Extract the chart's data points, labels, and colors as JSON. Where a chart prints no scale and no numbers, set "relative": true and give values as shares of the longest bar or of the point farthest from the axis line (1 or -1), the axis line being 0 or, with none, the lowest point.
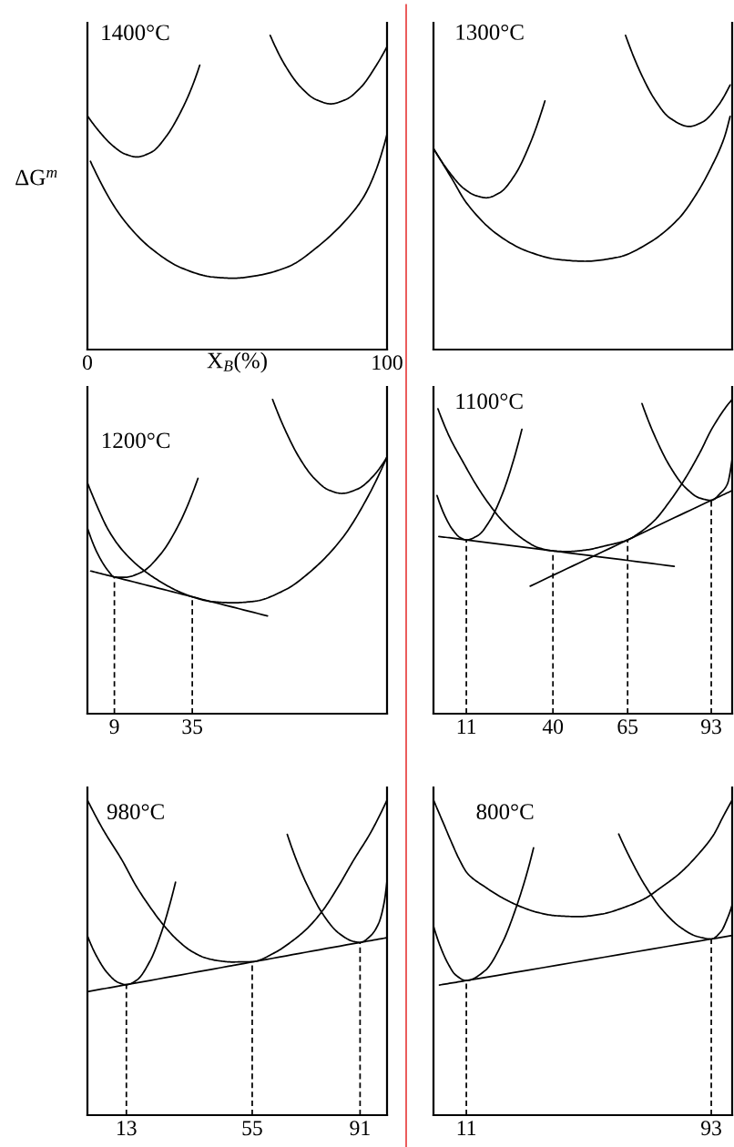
{
  "chart_data": [
    {
      "type": "line",
      "title": "1400°C",
      "xlabel": "X$_{B}$(%)",
      "ylabel": "ΔG$^{m}$",
      "relative": true,
      "xlim": [
        0,
        100
      ],
      "xticks": [
        0,
        100
      ],
      "tick_labels": "x",
      "series": [
        {
          "color": "#000000",
          "x": [
            0,
            4.3,
            8.3,
            12.4,
            16.4,
            21.5,
            26.5,
            31.6,
            34.7,
            37.5
          ],
          "values": [
            0.744,
            0.69,
            0.65,
            0.623,
            0.613,
            0.629,
            0.681,
            0.765,
            0.831,
            0.905
          ]
        },
        {
          "color": "#000000",
          "x": [
            61.0,
            66.0,
            71.1,
            76.2,
            81.2,
            86.3,
            91.4,
            96.4,
            100
          ],
          "values": [
            1.0,
            0.904,
            0.836,
            0.796,
            0.782,
            0.796,
            0.836,
            0.904,
            0.964
          ]
        },
        {
          "color": "#000000",
          "x": [
            1.0,
            11.3,
            21.5,
            31.6,
            41.7,
            48.8,
            56.9,
            67.1,
            77.2,
            87.3,
            92.4,
            96.4,
            100
          ],
          "values": [
            0.599,
            0.423,
            0.32,
            0.259,
            0.231,
            0.227,
            0.236,
            0.264,
            0.33,
            0.423,
            0.489,
            0.573,
            0.685
          ]
        }
      ]
    },
    {
      "type": "line",
      "title": "1300°C",
      "relative": true,
      "xlim": [
        0,
        100
      ],
      "tick_labels": false,
      "series": [
        {
          "color": "#000000",
          "x": [
            0,
            5.1,
            10.1,
            14.2,
            17.7,
            22.3,
            27.4,
            32.4,
            37.3
          ],
          "values": [
            0.64,
            0.567,
            0.513,
            0.49,
            0.483,
            0.5,
            0.558,
            0.657,
            0.791
          ]
        },
        {
          "color": "#000000",
          "x": [
            0,
            6.1,
            11.1,
            21.3,
            31.4,
            41.5,
            50.7,
            61.8,
            71.9,
            82.1,
            88.1,
            93.2,
            97.3,
            99.3
          ],
          "values": [
            0.64,
            0.545,
            0.466,
            0.367,
            0.313,
            0.287,
            0.281,
            0.294,
            0.338,
            0.417,
            0.496,
            0.584,
            0.673,
            0.742
          ]
        },
        {
          "color": "#000000",
          "x": [
            64.3,
            68.9,
            74.0,
            79.0,
            85.6,
            90.2,
            95.2,
            99.3
          ],
          "values": [
            1.0,
            0.89,
            0.797,
            0.738,
            0.71,
            0.725,
            0.775,
            0.842
          ]
        }
      ]
    },
    {
      "type": "line",
      "title": "1200°C",
      "relative": true,
      "xlim": [
        0,
        100
      ],
      "xticks": [
        9,
        35
      ],
      "tick_labels": "x",
      "series": [
        {
          "color": "#000000",
          "x": [
            0,
            3.2,
            6.9,
            9,
            12.4,
            18.0,
            24.2,
            30.4,
            36.9
          ],
          "values": [
            0.591,
            0.513,
            0.455,
            0.435,
            0.434,
            0.45,
            0.505,
            0.6,
            0.749
          ]
        },
        {
          "color": "#000000",
          "x": [
            0,
            3.2,
            6.9,
            11.7,
            18.0,
            24.2,
            30.4,
            35,
            41.2,
            48.6,
            55.9,
            65.8,
            75.6,
            85.4,
            93.3,
            100
          ],
          "values": [
            0.735,
            0.661,
            0.586,
            0.52,
            0.462,
            0.421,
            0.389,
            0.372,
            0.357,
            0.353,
            0.358,
            0.393,
            0.462,
            0.563,
            0.685,
            0.817
          ]
        },
        {
          "color": "#000000",
          "x": [
            61.8,
            65.8,
            70.7,
            75.6,
            80.5,
            84.9,
            90.4,
            95.3,
            100
          ],
          "values": [
            1.0,
            0.907,
            0.815,
            0.75,
            0.712,
            0.701,
            0.716,
            0.755,
            0.817
          ]
        },
        {
          "color": "#000000",
          "x": [
            1.1,
            9,
            35,
            60.1
          ],
          "values": [
            0.454,
            0.435,
            0.372,
            0.311
          ]
        },
        {
          "color": "#000000",
          "line_style": "dashed",
          "x": [
            9,
            9
          ],
          "values": [
            0,
            0.435
          ]
        },
        {
          "color": "#000000",
          "line_style": "dashed",
          "x": [
            35,
            35
          ],
          "values": [
            0,
            0.372
          ]
        }
      ]
    },
    {
      "type": "line",
      "title": "1100°C",
      "relative": true,
      "xlim": [
        0,
        100
      ],
      "xticks": [
        11,
        40,
        65,
        93
      ],
      "tick_labels": "x",
      "series": [
        {
          "color": "#000000",
          "x": [
            1.2,
            3.6,
            6.3,
            9.0,
            11,
            15.0,
            19.1,
            23.3,
            26.6,
            29.6
          ],
          "values": [
            0.694,
            0.634,
            0.587,
            0.56,
            0.553,
            0.568,
            0.618,
            0.705,
            0.8,
            0.905
          ]
        },
        {
          "color": "#000000",
          "x": [
            1.5,
            5.4,
            9.9,
            14.1,
            18.3,
            22.4,
            26.6,
            30.7,
            34.9,
            40,
            44.8,
            51.1,
            57.4,
            65,
            69.0,
            74.1,
            79.1,
            84.1,
            89.2,
            93.4,
            100
          ],
          "values": [
            0.97,
            0.88,
            0.801,
            0.731,
            0.671,
            0.621,
            0.581,
            0.551,
            0.529,
            0.518,
            0.516,
            0.521,
            0.534,
            0.553,
            0.576,
            0.616,
            0.676,
            0.746,
            0.831,
            0.91,
            1.0
          ]
        },
        {
          "color": "#000000",
          "x": [
            69.8,
            74.1,
            79.1,
            84.1,
            89.2,
            93,
            96.1,
            98.4,
            100
          ],
          "values": [
            0.987,
            0.883,
            0.788,
            0.722,
            0.686,
            0.679,
            0.702,
            0.731,
            0.811
          ]
        },
        {
          "color": "#000000",
          "x": [
            1.8,
            11,
            40,
            80.6
          ],
          "values": [
            0.564,
            0.553,
            0.518,
            0.469
          ]
        },
        {
          "color": "#000000",
          "x": [
            32.4,
            65,
            93,
            100
          ],
          "values": [
            0.406,
            0.553,
            0.679,
            0.71
          ]
        },
        {
          "color": "#000000",
          "line_style": "dashed",
          "x": [
            11,
            11
          ],
          "values": [
            0,
            0.553
          ]
        },
        {
          "color": "#000000",
          "line_style": "dashed",
          "x": [
            40,
            40
          ],
          "values": [
            0,
            0.518
          ]
        },
        {
          "color": "#000000",
          "line_style": "dashed",
          "x": [
            65,
            65
          ],
          "values": [
            0,
            0.553
          ]
        },
        {
          "color": "#000000",
          "line_style": "dashed",
          "x": [
            93,
            93
          ],
          "values": [
            0,
            0.679
          ]
        }
      ]
    },
    {
      "type": "line",
      "title": "980°C",
      "relative": true,
      "xlim": [
        0,
        100
      ],
      "xticks": [
        13,
        55,
        91
      ],
      "tick_labels": "x",
      "series": [
        {
          "color": "#000000",
          "x": [
            0,
            2.8,
            6.6,
            10.3,
            13,
            16.4,
            21.0,
            24.6,
            27.3,
            29.4
          ],
          "values": [
            0.569,
            0.509,
            0.452,
            0.421,
            0.414,
            0.428,
            0.491,
            0.577,
            0.662,
            0.739
          ]
        },
        {
          "color": "#000000",
          "x": [
            0,
            5.3,
            11.5,
            16.4,
            21.0,
            25.5,
            30.1,
            34.6,
            39.1,
            43.7,
            48.2,
            55,
            62.8,
            68.0,
            73.3,
            78.5,
            83.7,
            88.9,
            94.5,
            100
          ],
          "values": [
            1.0,
            0.905,
            0.81,
            0.725,
            0.659,
            0.602,
            0.555,
            0.521,
            0.5,
            0.49,
            0.486,
            0.487,
            0.517,
            0.55,
            0.592,
            0.649,
            0.725,
            0.81,
            0.896,
            1.0
          ]
        },
        {
          "color": "#000000",
          "x": [
            66.7,
            70.1,
            73.3,
            78.5,
            83.7,
            88.9,
            91,
            94.5,
            97.3,
            99.1,
            100
          ],
          "values": [
            0.891,
            0.801,
            0.731,
            0.639,
            0.579,
            0.551,
            0.548,
            0.569,
            0.611,
            0.678,
            0.744
          ]
        },
        {
          "color": "#000000",
          "x": [
            0,
            13,
            55,
            91,
            100
          ],
          "values": [
            0.392,
            0.414,
            0.486,
            0.548,
            0.563
          ]
        },
        {
          "color": "#000000",
          "line_style": "dashed",
          "x": [
            13,
            13
          ],
          "values": [
            0,
            0.414
          ]
        },
        {
          "color": "#000000",
          "line_style": "dashed",
          "x": [
            55,
            55
          ],
          "values": [
            0,
            0.486
          ]
        },
        {
          "color": "#000000",
          "line_style": "dashed",
          "x": [
            91,
            91
          ],
          "values": [
            0,
            0.548
          ]
        }
      ]
    },
    {
      "type": "line",
      "title": "800°C",
      "relative": true,
      "xlim": [
        0,
        100
      ],
      "xticks": [
        11,
        93
      ],
      "tick_labels": "x",
      "series": [
        {
          "color": "#000000",
          "x": [
            0,
            3.2,
            5.8,
            8.5,
            11.4,
            17.3,
            23.2,
            29.1,
            35.0,
            40.9,
            48.6,
            56.3,
            64.6,
            70.5,
            76.4,
            82.4,
            88.3,
            93.8,
            97.0,
            100
          ],
          "values": [
            1.0,
            0.929,
            0.871,
            0.814,
            0.767,
            0.724,
            0.689,
            0.662,
            0.643,
            0.633,
            0.63,
            0.638,
            0.662,
            0.686,
            0.724,
            0.767,
            0.824,
            0.89,
            0.948,
            1.0
          ]
        },
        {
          "color": "#000000",
          "x": [
            0,
            2.1,
            4.8,
            7.4,
            11,
            17.3,
            23.2,
            27.9,
            31.5,
            33.5
          ],
          "values": [
            0.6,
            0.54,
            0.482,
            0.445,
            0.427,
            0.459,
            0.55,
            0.665,
            0.775,
            0.848
          ]
        },
        {
          "color": "#000000",
          "x": [
            62.0,
            65.8,
            70.5,
            76.4,
            82.4,
            88.3,
            93,
            96.2,
            98.6,
            100
          ],
          "values": [
            0.892,
            0.816,
            0.734,
            0.654,
            0.598,
            0.567,
            0.559,
            0.582,
            0.629,
            0.667
          ]
        },
        {
          "color": "#000000",
          "x": [
            2,
            11,
            93,
            100
          ],
          "values": [
            0.413,
            0.427,
            0.559,
            0.57
          ]
        },
        {
          "color": "#000000",
          "line_style": "dashed",
          "x": [
            11,
            11
          ],
          "values": [
            0,
            0.427
          ]
        },
        {
          "color": "#000000",
          "line_style": "dashed",
          "x": [
            93,
            93
          ],
          "values": [
            0,
            0.559
          ]
        }
      ]
    }
  ]
}
